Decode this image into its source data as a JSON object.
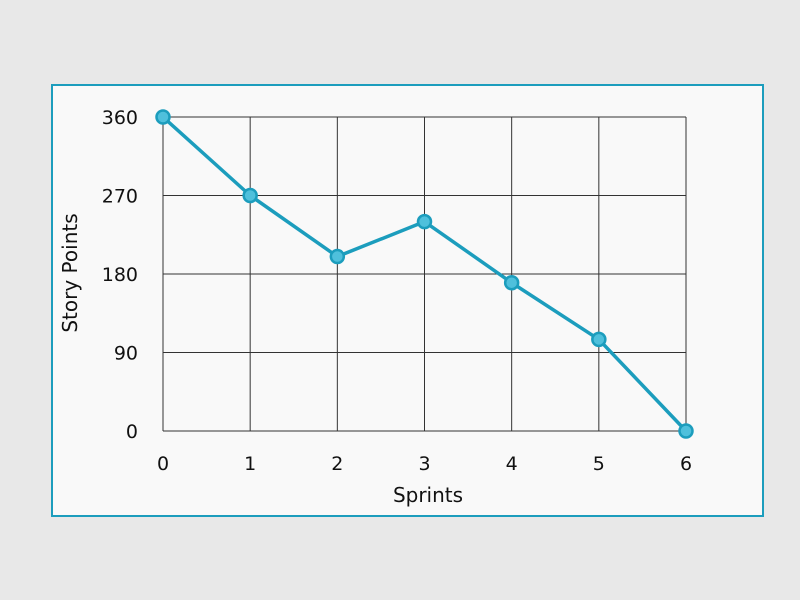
{
  "chart_data": {
    "type": "line",
    "title": "",
    "xlabel": "Sprints",
    "ylabel": "Story Points",
    "x": [
      0,
      1,
      2,
      3,
      4,
      5,
      6
    ],
    "series": [
      {
        "values": [
          360,
          270,
          200,
          240,
          170,
          105,
          0
        ]
      }
    ],
    "xlim": [
      0,
      6
    ],
    "ylim": [
      0,
      360
    ],
    "x_ticks": [
      "0",
      "1",
      "2",
      "3",
      "4",
      "5",
      "6"
    ],
    "y_ticks": [
      "0",
      "90",
      "180",
      "270",
      "360"
    ],
    "grid": true,
    "line_color": "#1c9dbd",
    "marker_fill": "#4fc0dc",
    "frame_color": "#1c9dbd"
  }
}
